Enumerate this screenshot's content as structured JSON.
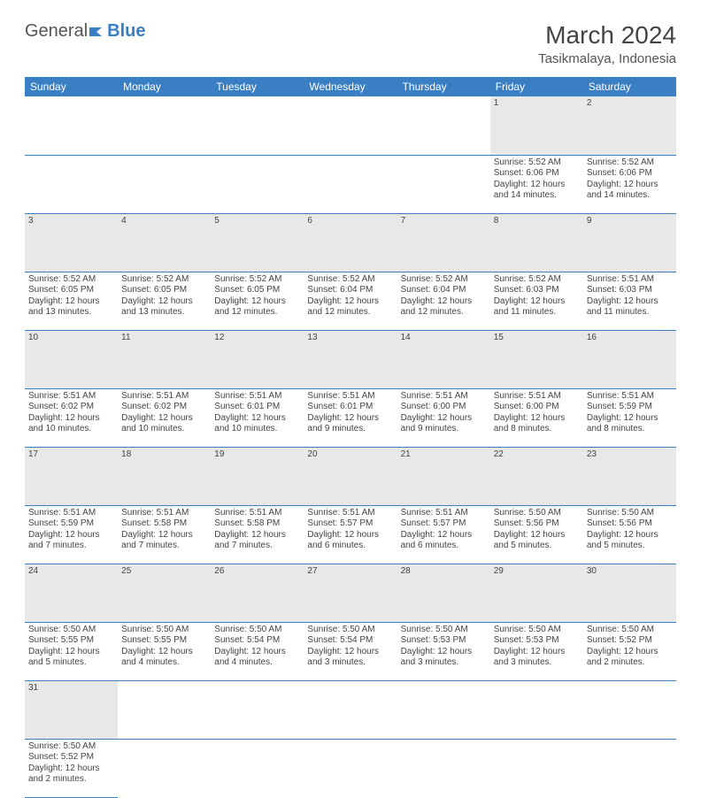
{
  "logo": {
    "text1": "General",
    "text2": "Blue"
  },
  "title": "March 2024",
  "location": "Tasikmalaya, Indonesia",
  "colors": {
    "header_bg": "#3a7fc4",
    "grey_bg": "#e8e8e8",
    "border": "#3a7fc4"
  },
  "weekdays": [
    "Sunday",
    "Monday",
    "Tuesday",
    "Wednesday",
    "Thursday",
    "Friday",
    "Saturday"
  ],
  "weeks": [
    {
      "nums": [
        "",
        "",
        "",
        "",
        "",
        "1",
        "2"
      ],
      "cells": [
        null,
        null,
        null,
        null,
        null,
        {
          "sunrise": "Sunrise: 5:52 AM",
          "sunset": "Sunset: 6:06 PM",
          "day1": "Daylight: 12 hours",
          "day2": "and 14 minutes."
        },
        {
          "sunrise": "Sunrise: 5:52 AM",
          "sunset": "Sunset: 6:06 PM",
          "day1": "Daylight: 12 hours",
          "day2": "and 14 minutes."
        }
      ]
    },
    {
      "nums": [
        "3",
        "4",
        "5",
        "6",
        "7",
        "8",
        "9"
      ],
      "cells": [
        {
          "sunrise": "Sunrise: 5:52 AM",
          "sunset": "Sunset: 6:05 PM",
          "day1": "Daylight: 12 hours",
          "day2": "and 13 minutes."
        },
        {
          "sunrise": "Sunrise: 5:52 AM",
          "sunset": "Sunset: 6:05 PM",
          "day1": "Daylight: 12 hours",
          "day2": "and 13 minutes."
        },
        {
          "sunrise": "Sunrise: 5:52 AM",
          "sunset": "Sunset: 6:05 PM",
          "day1": "Daylight: 12 hours",
          "day2": "and 12 minutes."
        },
        {
          "sunrise": "Sunrise: 5:52 AM",
          "sunset": "Sunset: 6:04 PM",
          "day1": "Daylight: 12 hours",
          "day2": "and 12 minutes."
        },
        {
          "sunrise": "Sunrise: 5:52 AM",
          "sunset": "Sunset: 6:04 PM",
          "day1": "Daylight: 12 hours",
          "day2": "and 12 minutes."
        },
        {
          "sunrise": "Sunrise: 5:52 AM",
          "sunset": "Sunset: 6:03 PM",
          "day1": "Daylight: 12 hours",
          "day2": "and 11 minutes."
        },
        {
          "sunrise": "Sunrise: 5:51 AM",
          "sunset": "Sunset: 6:03 PM",
          "day1": "Daylight: 12 hours",
          "day2": "and 11 minutes."
        }
      ]
    },
    {
      "nums": [
        "10",
        "11",
        "12",
        "13",
        "14",
        "15",
        "16"
      ],
      "cells": [
        {
          "sunrise": "Sunrise: 5:51 AM",
          "sunset": "Sunset: 6:02 PM",
          "day1": "Daylight: 12 hours",
          "day2": "and 10 minutes."
        },
        {
          "sunrise": "Sunrise: 5:51 AM",
          "sunset": "Sunset: 6:02 PM",
          "day1": "Daylight: 12 hours",
          "day2": "and 10 minutes."
        },
        {
          "sunrise": "Sunrise: 5:51 AM",
          "sunset": "Sunset: 6:01 PM",
          "day1": "Daylight: 12 hours",
          "day2": "and 10 minutes."
        },
        {
          "sunrise": "Sunrise: 5:51 AM",
          "sunset": "Sunset: 6:01 PM",
          "day1": "Daylight: 12 hours",
          "day2": "and 9 minutes."
        },
        {
          "sunrise": "Sunrise: 5:51 AM",
          "sunset": "Sunset: 6:00 PM",
          "day1": "Daylight: 12 hours",
          "day2": "and 9 minutes."
        },
        {
          "sunrise": "Sunrise: 5:51 AM",
          "sunset": "Sunset: 6:00 PM",
          "day1": "Daylight: 12 hours",
          "day2": "and 8 minutes."
        },
        {
          "sunrise": "Sunrise: 5:51 AM",
          "sunset": "Sunset: 5:59 PM",
          "day1": "Daylight: 12 hours",
          "day2": "and 8 minutes."
        }
      ]
    },
    {
      "nums": [
        "17",
        "18",
        "19",
        "20",
        "21",
        "22",
        "23"
      ],
      "cells": [
        {
          "sunrise": "Sunrise: 5:51 AM",
          "sunset": "Sunset: 5:59 PM",
          "day1": "Daylight: 12 hours",
          "day2": "and 7 minutes."
        },
        {
          "sunrise": "Sunrise: 5:51 AM",
          "sunset": "Sunset: 5:58 PM",
          "day1": "Daylight: 12 hours",
          "day2": "and 7 minutes."
        },
        {
          "sunrise": "Sunrise: 5:51 AM",
          "sunset": "Sunset: 5:58 PM",
          "day1": "Daylight: 12 hours",
          "day2": "and 7 minutes."
        },
        {
          "sunrise": "Sunrise: 5:51 AM",
          "sunset": "Sunset: 5:57 PM",
          "day1": "Daylight: 12 hours",
          "day2": "and 6 minutes."
        },
        {
          "sunrise": "Sunrise: 5:51 AM",
          "sunset": "Sunset: 5:57 PM",
          "day1": "Daylight: 12 hours",
          "day2": "and 6 minutes."
        },
        {
          "sunrise": "Sunrise: 5:50 AM",
          "sunset": "Sunset: 5:56 PM",
          "day1": "Daylight: 12 hours",
          "day2": "and 5 minutes."
        },
        {
          "sunrise": "Sunrise: 5:50 AM",
          "sunset": "Sunset: 5:56 PM",
          "day1": "Daylight: 12 hours",
          "day2": "and 5 minutes."
        }
      ]
    },
    {
      "nums": [
        "24",
        "25",
        "26",
        "27",
        "28",
        "29",
        "30"
      ],
      "cells": [
        {
          "sunrise": "Sunrise: 5:50 AM",
          "sunset": "Sunset: 5:55 PM",
          "day1": "Daylight: 12 hours",
          "day2": "and 5 minutes."
        },
        {
          "sunrise": "Sunrise: 5:50 AM",
          "sunset": "Sunset: 5:55 PM",
          "day1": "Daylight: 12 hours",
          "day2": "and 4 minutes."
        },
        {
          "sunrise": "Sunrise: 5:50 AM",
          "sunset": "Sunset: 5:54 PM",
          "day1": "Daylight: 12 hours",
          "day2": "and 4 minutes."
        },
        {
          "sunrise": "Sunrise: 5:50 AM",
          "sunset": "Sunset: 5:54 PM",
          "day1": "Daylight: 12 hours",
          "day2": "and 3 minutes."
        },
        {
          "sunrise": "Sunrise: 5:50 AM",
          "sunset": "Sunset: 5:53 PM",
          "day1": "Daylight: 12 hours",
          "day2": "and 3 minutes."
        },
        {
          "sunrise": "Sunrise: 5:50 AM",
          "sunset": "Sunset: 5:53 PM",
          "day1": "Daylight: 12 hours",
          "day2": "and 3 minutes."
        },
        {
          "sunrise": "Sunrise: 5:50 AM",
          "sunset": "Sunset: 5:52 PM",
          "day1": "Daylight: 12 hours",
          "day2": "and 2 minutes."
        }
      ]
    },
    {
      "nums": [
        "31",
        "",
        "",
        "",
        "",
        "",
        ""
      ],
      "cells": [
        {
          "sunrise": "Sunrise: 5:50 AM",
          "sunset": "Sunset: 5:52 PM",
          "day1": "Daylight: 12 hours",
          "day2": "and 2 minutes."
        },
        null,
        null,
        null,
        null,
        null,
        null
      ],
      "last": true
    }
  ]
}
